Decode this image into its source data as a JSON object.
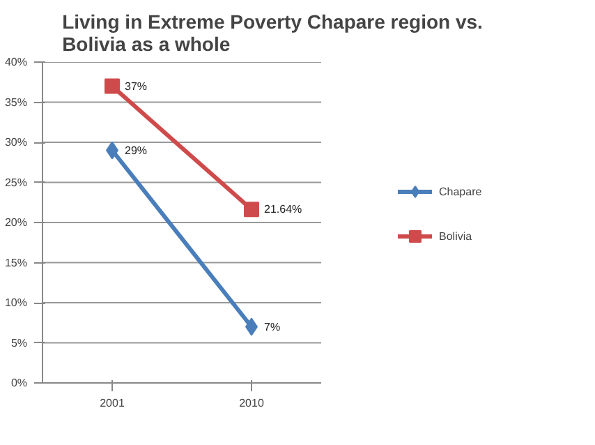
{
  "chart_data": {
    "type": "line",
    "title": "Living in Extreme Poverty Chapare region vs. Bolivia as a whole",
    "categories": [
      "2001",
      "2010"
    ],
    "series": [
      {
        "name": "Chapare",
        "color": "#4a7ebb",
        "values": [
          29,
          7
        ],
        "marker": "diamond",
        "value_labels": [
          "29%",
          "7%"
        ]
      },
      {
        "name": "Bolivia",
        "color": "#cf4b4b",
        "values": [
          37,
          21.64
        ],
        "marker": "square",
        "value_labels": [
          "37%",
          "21.64%"
        ]
      }
    ],
    "ylim": [
      0,
      40
    ],
    "yticks": [
      {
        "value": 0,
        "label": "0%"
      },
      {
        "value": 5,
        "label": "5%"
      },
      {
        "value": 10,
        "label": "10%"
      },
      {
        "value": 15,
        "label": "15%"
      },
      {
        "value": 20,
        "label": "20%"
      },
      {
        "value": 25,
        "label": "25%"
      },
      {
        "value": 30,
        "label": "30%"
      },
      {
        "value": 35,
        "label": "35%"
      },
      {
        "value": 40,
        "label": "40%"
      }
    ],
    "grid": "y",
    "legend": "right",
    "line_style": "solid"
  }
}
